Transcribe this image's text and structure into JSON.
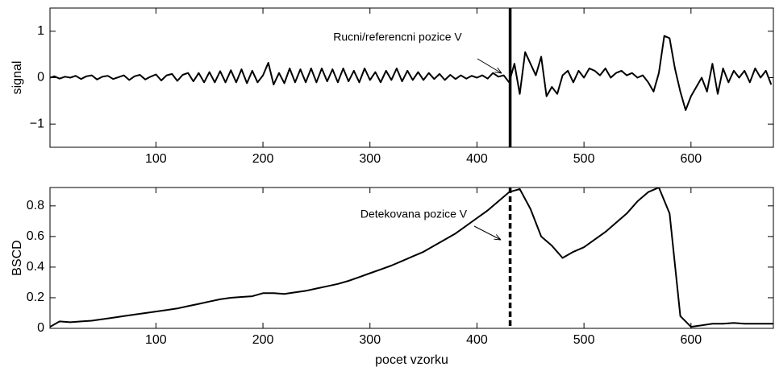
{
  "chart_data": [
    {
      "type": "line",
      "ylabel": "signal",
      "annotation": "Rucni/referencni pozice V",
      "marker_x": 431,
      "marker_style": "solid",
      "xlim": [
        1,
        677
      ],
      "ylim": [
        -1.5,
        1.5
      ],
      "xticks": [
        100,
        200,
        300,
        400,
        500,
        600
      ],
      "yticks": [
        {
          "value": -1,
          "label": "−1"
        },
        0,
        1
      ],
      "color": "#000000",
      "x": [
        1,
        5,
        10,
        15,
        20,
        25,
        30,
        35,
        40,
        45,
        50,
        55,
        60,
        65,
        70,
        75,
        80,
        85,
        90,
        95,
        100,
        105,
        110,
        115,
        120,
        125,
        130,
        135,
        140,
        145,
        150,
        155,
        160,
        165,
        170,
        175,
        180,
        185,
        190,
        195,
        200,
        205,
        210,
        215,
        220,
        225,
        230,
        235,
        240,
        245,
        250,
        255,
        260,
        265,
        270,
        275,
        280,
        285,
        290,
        295,
        300,
        305,
        310,
        315,
        320,
        325,
        330,
        335,
        340,
        345,
        350,
        355,
        360,
        365,
        370,
        375,
        380,
        385,
        390,
        395,
        400,
        405,
        410,
        415,
        420,
        425,
        430,
        435,
        440,
        445,
        450,
        455,
        460,
        465,
        470,
        475,
        480,
        485,
        490,
        495,
        500,
        505,
        510,
        515,
        520,
        525,
        530,
        535,
        540,
        545,
        550,
        555,
        560,
        565,
        570,
        575,
        580,
        585,
        590,
        595,
        600,
        605,
        610,
        615,
        620,
        625,
        630,
        635,
        640,
        645,
        650,
        655,
        660,
        665,
        670,
        675
      ],
      "values": [
        0,
        0.03,
        -0.02,
        0.02,
        0,
        0.04,
        -0.03,
        0.03,
        0.05,
        -0.04,
        0.02,
        0.04,
        -0.03,
        0.01,
        0.05,
        -0.05,
        0.03,
        0.06,
        -0.04,
        0.02,
        0.07,
        -0.06,
        0.05,
        0.08,
        -0.07,
        0.06,
        0.1,
        -0.08,
        0.1,
        -0.1,
        0.12,
        -0.1,
        0.14,
        -0.1,
        0.16,
        -0.1,
        0.18,
        -0.12,
        0.15,
        -0.1,
        0.05,
        0.32,
        -0.15,
        0.1,
        -0.12,
        0.2,
        -0.1,
        0.18,
        -0.1,
        0.2,
        -0.1,
        0.2,
        -0.08,
        0.18,
        -0.1,
        0.2,
        -0.08,
        0.15,
        -0.1,
        0.2,
        -0.05,
        0.12,
        -0.1,
        0.15,
        -0.05,
        0.2,
        -0.08,
        0.15,
        -0.05,
        0.12,
        -0.05,
        0.1,
        -0.03,
        0.08,
        -0.05,
        0.06,
        -0.03,
        0.05,
        -0.02,
        0.04,
        0,
        0.05,
        -0.02,
        0.1,
        0.02,
        0.05,
        -0.1,
        0.3,
        -0.35,
        0.55,
        0.3,
        0.05,
        0.45,
        -0.4,
        -0.2,
        -0.35,
        0.05,
        0.15,
        -0.1,
        0.15,
        0,
        0.2,
        0.15,
        0.05,
        0.2,
        0,
        0.1,
        0.15,
        0.05,
        0.1,
        0,
        0.05,
        -0.1,
        -0.3,
        0.1,
        0.9,
        0.85,
        0.2,
        -0.3,
        -0.7,
        -0.4,
        -0.2,
        0,
        -0.3,
        0.3,
        -0.35,
        0.2,
        -0.1,
        0.15,
        0,
        0.15,
        -0.1,
        0.2,
        0,
        0.15,
        -0.15
      ]
    },
    {
      "type": "line",
      "ylabel": "BSCD",
      "xlabel": "pocet vzorku",
      "annotation": "Detekovana pozice V",
      "marker_x": 431,
      "marker_style": "dashed",
      "xlim": [
        1,
        677
      ],
      "ylim": [
        0,
        0.92
      ],
      "xticks": [
        100,
        200,
        300,
        400,
        500,
        600
      ],
      "yticks": [
        0,
        0.2,
        0.4,
        0.6,
        0.8
      ],
      "color": "#000000",
      "x": [
        1,
        10,
        20,
        30,
        40,
        50,
        60,
        70,
        80,
        90,
        100,
        110,
        120,
        130,
        140,
        150,
        160,
        170,
        180,
        190,
        200,
        210,
        220,
        230,
        240,
        250,
        260,
        270,
        280,
        290,
        300,
        310,
        320,
        330,
        340,
        350,
        360,
        370,
        380,
        390,
        400,
        410,
        420,
        430,
        440,
        450,
        460,
        470,
        480,
        490,
        500,
        510,
        520,
        530,
        540,
        550,
        560,
        570,
        580,
        590,
        600,
        610,
        620,
        630,
        640,
        650,
        660,
        670,
        677
      ],
      "values": [
        0.01,
        0.045,
        0.04,
        0.045,
        0.05,
        0.06,
        0.07,
        0.08,
        0.09,
        0.1,
        0.11,
        0.12,
        0.13,
        0.145,
        0.16,
        0.175,
        0.19,
        0.2,
        0.205,
        0.21,
        0.23,
        0.23,
        0.225,
        0.235,
        0.245,
        0.26,
        0.275,
        0.29,
        0.31,
        0.335,
        0.36,
        0.385,
        0.41,
        0.44,
        0.47,
        0.5,
        0.54,
        0.58,
        0.62,
        0.67,
        0.72,
        0.77,
        0.83,
        0.89,
        0.91,
        0.78,
        0.6,
        0.54,
        0.46,
        0.5,
        0.53,
        0.58,
        0.63,
        0.69,
        0.75,
        0.83,
        0.89,
        0.92,
        0.75,
        0.08,
        0.01,
        0.02,
        0.03,
        0.03,
        0.035,
        0.03,
        0.03,
        0.03,
        0.03
      ]
    }
  ]
}
